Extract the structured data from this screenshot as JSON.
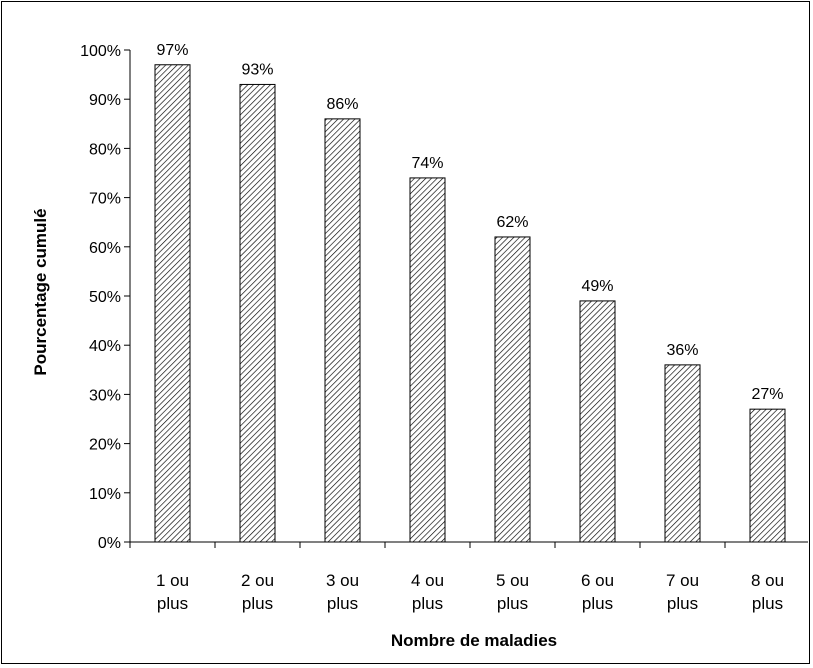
{
  "chart_data": {
    "type": "bar",
    "title": "",
    "xlabel": "Nombre de maladies",
    "ylabel": "Pourcentage cumulé",
    "categories": [
      [
        "1 ou",
        "plus"
      ],
      [
        "2 ou",
        "plus"
      ],
      [
        "3 ou",
        "plus"
      ],
      [
        "4 ou",
        "plus"
      ],
      [
        "5 ou",
        "plus"
      ],
      [
        "6 ou",
        "plus"
      ],
      [
        "7 ou",
        "plus"
      ],
      [
        "8 ou",
        "plus"
      ]
    ],
    "values": [
      97,
      93,
      86,
      74,
      62,
      49,
      36,
      27
    ],
    "data_labels": [
      "97%",
      "93%",
      "86%",
      "74%",
      "62%",
      "49%",
      "36%",
      "27%"
    ],
    "ylim": [
      0,
      100
    ],
    "y_ticks": [
      0,
      10,
      20,
      30,
      40,
      50,
      60,
      70,
      80,
      90,
      100
    ],
    "y_tick_labels": [
      "0%",
      "10%",
      "20%",
      "30%",
      "40%",
      "50%",
      "60%",
      "70%",
      "80%",
      "90%",
      "100%"
    ],
    "grid": false,
    "legend": "none",
    "bar_fill": "diagonal-hatch",
    "colors": {
      "bar_stroke": "#000000",
      "hatch": "#000000",
      "background": "#ffffff"
    }
  }
}
